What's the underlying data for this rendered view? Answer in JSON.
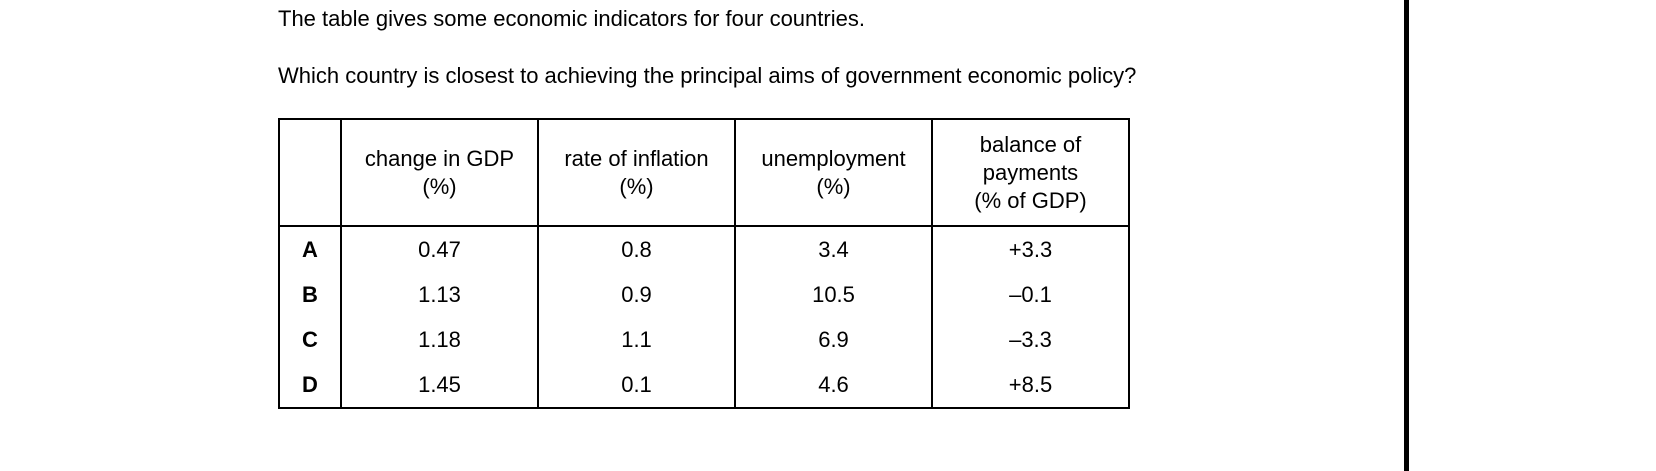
{
  "question": {
    "intro": "The table gives some economic indicators for four countries.",
    "stem": "Which country is closest to achieving the principal aims of government economic policy?"
  },
  "table": {
    "headers": [
      [
        "change in GDP",
        "(%)"
      ],
      [
        "rate of inflation",
        "(%)"
      ],
      [
        "unemployment",
        "(%)"
      ],
      [
        "balance of",
        "payments",
        "(% of GDP)"
      ]
    ],
    "rows": [
      [
        "A",
        "0.47",
        "0.8",
        "3.4",
        "+3.3"
      ],
      [
        "B",
        "1.13",
        "0.9",
        "10.5",
        "–0.1"
      ],
      [
        "C",
        "1.18",
        "1.1",
        "6.9",
        "–3.3"
      ],
      [
        "D",
        "1.45",
        "0.1",
        "4.6",
        "+8.5"
      ]
    ]
  }
}
